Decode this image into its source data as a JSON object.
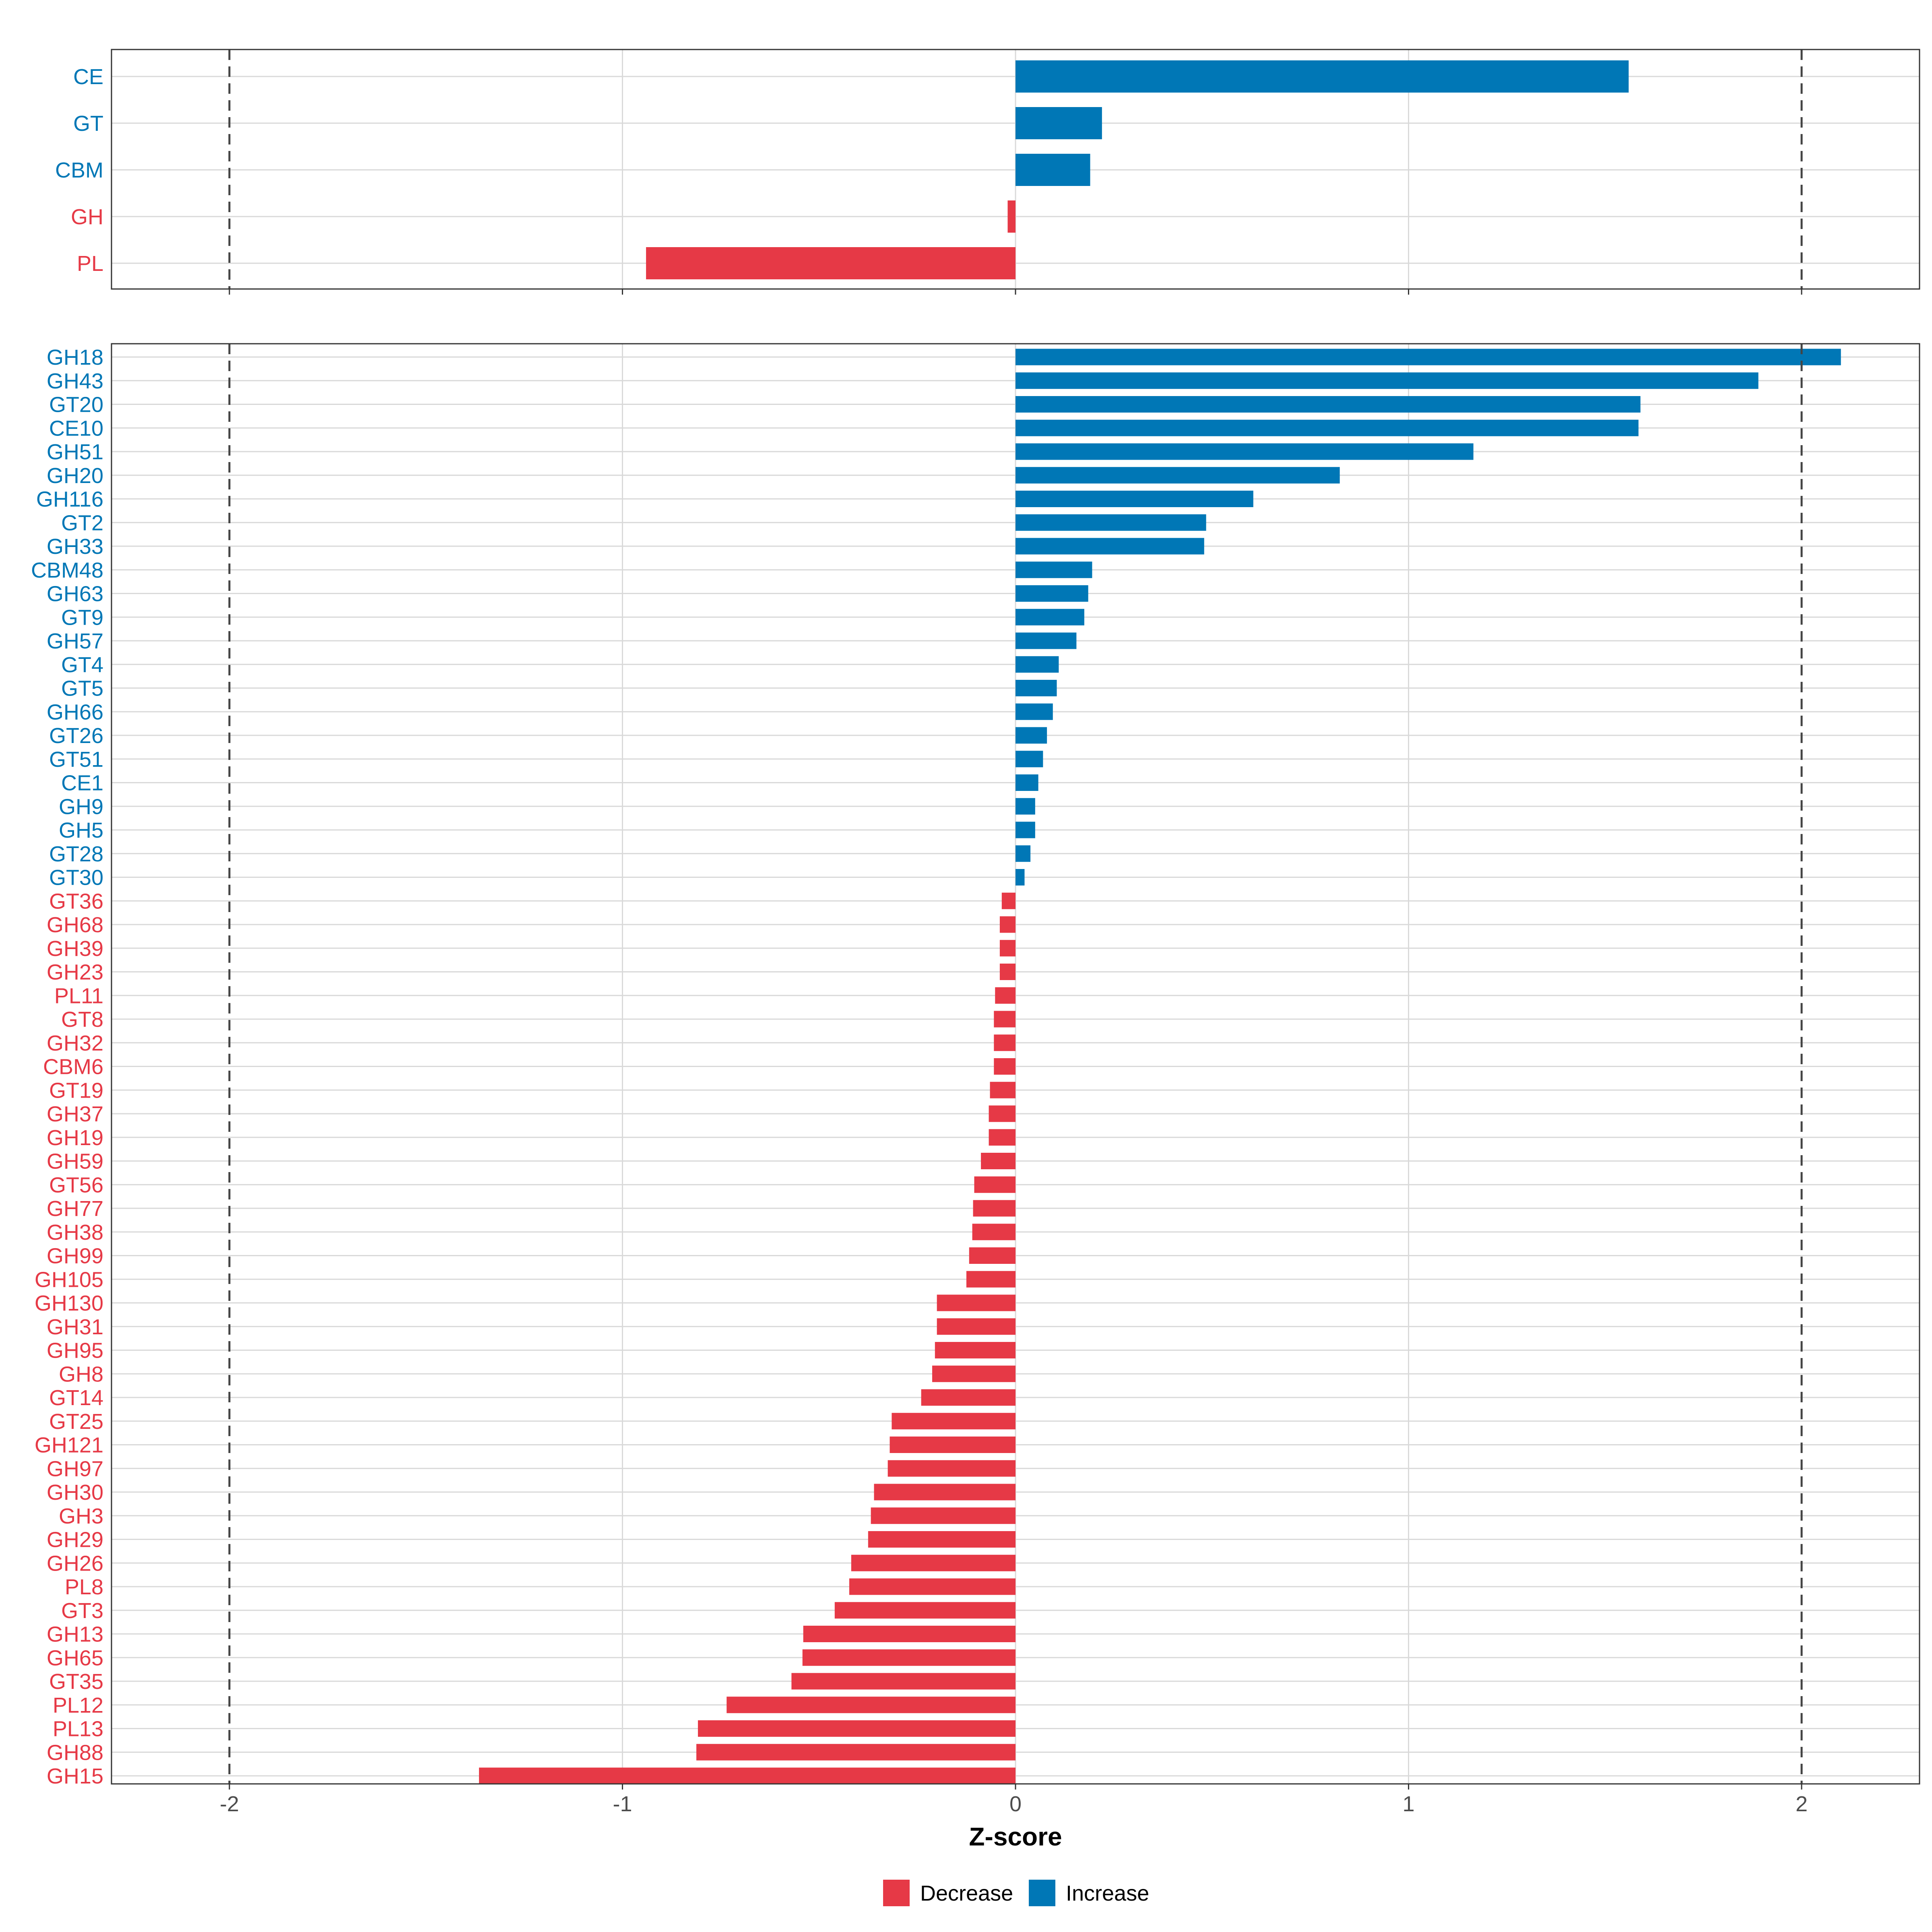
{
  "colors": {
    "increase": "#0077b6",
    "decrease": "#e63946",
    "grid": "#d9d9d9",
    "panel_border": "#333333",
    "ref_line": "#444444"
  },
  "chart_data": [
    {
      "type": "bar",
      "orientation": "horizontal",
      "panel": "top",
      "categories": [
        "CE",
        "GT",
        "CBM",
        "GH",
        "PL"
      ],
      "values": [
        1.56,
        0.22,
        0.19,
        -0.02,
        -0.94
      ],
      "xlim": [
        -2.3,
        2.3
      ],
      "reference_lines": [
        -2,
        2
      ]
    },
    {
      "type": "bar",
      "orientation": "horizontal",
      "panel": "bottom",
      "categories": [
        "GH18",
        "GH43",
        "GT20",
        "CE10",
        "GH51",
        "GH20",
        "GH116",
        "GT2",
        "GH33",
        "CBM48",
        "GH63",
        "GT9",
        "GH57",
        "GT4",
        "GT5",
        "GH66",
        "GT26",
        "GT51",
        "CE1",
        "GH9",
        "GH5",
        "GT28",
        "GT30",
        "GT36",
        "GH68",
        "GH39",
        "GH23",
        "PL11",
        "GT8",
        "GH32",
        "CBM6",
        "GT19",
        "GH37",
        "GH19",
        "GH59",
        "GT56",
        "GH77",
        "GH38",
        "GH99",
        "GH105",
        "GH130",
        "GH31",
        "GH95",
        "GH8",
        "GT14",
        "GT25",
        "GH121",
        "GH97",
        "GH30",
        "GH3",
        "GH29",
        "GH26",
        "PL8",
        "GT3",
        "GH13",
        "GH65",
        "GT35",
        "PL12",
        "PL13",
        "GH88",
        "GH15"
      ],
      "values": [
        2.1,
        1.89,
        1.59,
        1.585,
        1.165,
        0.825,
        0.605,
        0.485,
        0.48,
        0.195,
        0.185,
        0.175,
        0.155,
        0.11,
        0.105,
        0.095,
        0.08,
        0.07,
        0.058,
        0.05,
        0.05,
        0.038,
        0.023,
        -0.035,
        -0.04,
        -0.04,
        -0.04,
        -0.052,
        -0.055,
        -0.055,
        -0.055,
        -0.065,
        -0.068,
        -0.068,
        -0.088,
        -0.105,
        -0.108,
        -0.11,
        -0.118,
        -0.125,
        -0.2,
        -0.2,
        -0.205,
        -0.212,
        -0.24,
        -0.315,
        -0.32,
        -0.325,
        -0.36,
        -0.368,
        -0.375,
        -0.418,
        -0.423,
        -0.46,
        -0.54,
        -0.542,
        -0.57,
        -0.735,
        -0.808,
        -0.812,
        -1.365
      ],
      "xlim": [
        -2.3,
        2.3
      ],
      "reference_lines": [
        -2,
        2
      ],
      "xticks": [
        "-2",
        "-1",
        "0",
        "1",
        "2"
      ],
      "xtick_values": [
        -2,
        -1,
        0,
        1,
        2
      ],
      "xlabel": "Z-score"
    }
  ],
  "legend": {
    "items": [
      {
        "label": "Decrease",
        "color": "#e63946"
      },
      {
        "label": "Increase",
        "color": "#0077b6"
      }
    ]
  }
}
